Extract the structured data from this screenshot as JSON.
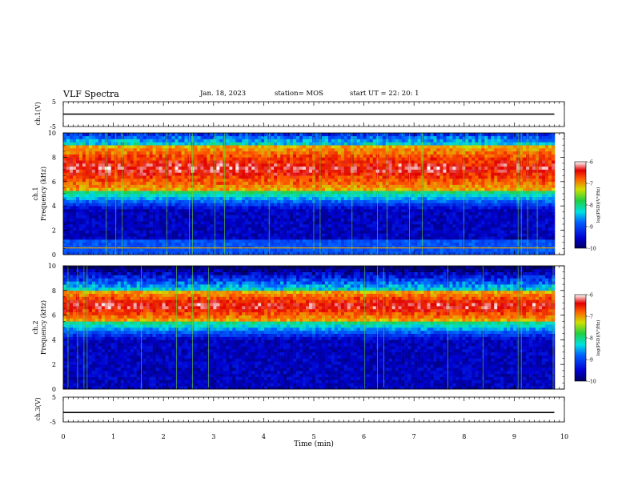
{
  "header": {
    "title": "VLF Spectra",
    "date": "Jan. 18, 2023",
    "station": "station= MOS",
    "start": "start  UT =   22: 20: 1"
  },
  "chart_data": [
    {
      "type": "line",
      "panel": "ch1 waveform",
      "ylabel": "ch.1(V)",
      "y_ticks": [
        "5",
        "-5"
      ],
      "ylim": [
        -5,
        5
      ],
      "series": [
        {
          "x": [
            0,
            9.8
          ],
          "y": [
            0,
            0
          ]
        }
      ]
    },
    {
      "type": "heatmap",
      "panel": "ch1 spectrogram",
      "ylabel_channel": "ch.1",
      "ylabel": "Frequency (kHz)",
      "y_ticks": [
        "0",
        "2",
        "4",
        "6",
        "8",
        "10"
      ],
      "ylim": [
        0,
        10
      ],
      "xlim": [
        0,
        9.8
      ],
      "intense_band_khz": [
        5.2,
        9.0
      ],
      "colorbar": {
        "label": "log(PSD)(V²/Hz)",
        "ticks": [
          "-6",
          "-7",
          "-8",
          "-9",
          "-10"
        ],
        "range": [
          -10,
          -6
        ]
      }
    },
    {
      "type": "heatmap",
      "panel": "ch2 spectrogram",
      "ylabel_channel": "ch.2",
      "ylabel": "Frequency (kHz)",
      "y_ticks": [
        "0",
        "2",
        "4",
        "6",
        "8",
        "10"
      ],
      "ylim": [
        0,
        10
      ],
      "xlim": [
        0,
        9.8
      ],
      "intense_band_khz": [
        5.5,
        8.0
      ],
      "colorbar": {
        "label": "log(PSD)(V²/Hz)",
        "ticks": [
          "-6",
          "-7",
          "-8",
          "-9",
          "-10"
        ],
        "range": [
          -10,
          -6
        ]
      }
    },
    {
      "type": "line",
      "panel": "ch3 waveform",
      "ylabel": "ch.3(V)",
      "y_ticks": [
        "5",
        "-5"
      ],
      "ylim": [
        -5,
        5
      ],
      "series": [
        {
          "x": [
            0,
            9.8
          ],
          "y": [
            -1.2,
            -1.2
          ]
        }
      ]
    }
  ],
  "x_axis": {
    "label": "Time (min)",
    "ticks": [
      "0",
      "1",
      "2",
      "3",
      "4",
      "5",
      "6",
      "7",
      "8",
      "9",
      "10"
    ],
    "range": [
      0,
      10
    ]
  }
}
